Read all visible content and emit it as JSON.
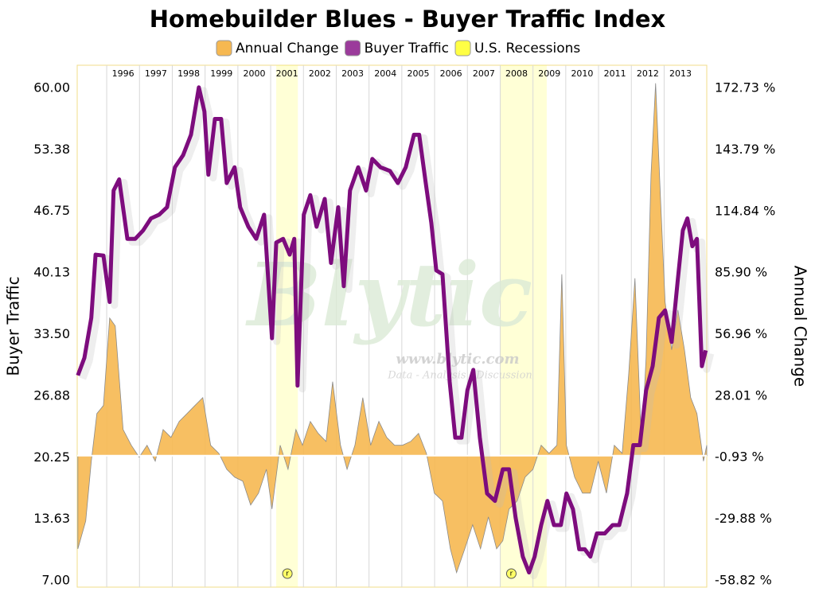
{
  "chart_data": {
    "type": "line",
    "title": "Homebuilder Blues - Buyer Traffic Index",
    "ylabel": "Buyer Traffic",
    "y2label": "Annual Change",
    "xlim": [
      1995.1,
      2014.3
    ],
    "xticks": [
      {
        "value": 1996,
        "label": "1996"
      },
      {
        "value": 1997,
        "label": "1997"
      },
      {
        "value": 1998,
        "label": "1998"
      },
      {
        "value": 1999,
        "label": "1999"
      },
      {
        "value": 2000,
        "label": "2000"
      },
      {
        "value": 2001,
        "label": "2001"
      },
      {
        "value": 2002,
        "label": "2002"
      },
      {
        "value": 2003,
        "label": "2003"
      },
      {
        "value": 2004,
        "label": "2004"
      },
      {
        "value": 2005,
        "label": "2005"
      },
      {
        "value": 2006,
        "label": "2006"
      },
      {
        "value": 2007,
        "label": "2007"
      },
      {
        "value": 2008,
        "label": "2008"
      },
      {
        "value": 2009,
        "label": "2009"
      },
      {
        "value": 2010,
        "label": "2010"
      },
      {
        "value": 2011,
        "label": "2011"
      },
      {
        "value": 2012,
        "label": "2012"
      },
      {
        "value": 2013,
        "label": "2013"
      }
    ],
    "ylim": [
      6.32,
      62.48
    ],
    "yticks": [
      {
        "value": 7,
        "label": "7.00"
      },
      {
        "value": 13.63,
        "label": "13.63"
      },
      {
        "value": 20.25,
        "label": "20.25"
      },
      {
        "value": 26.88,
        "label": "26.88"
      },
      {
        "value": 33.5,
        "label": "33.50"
      },
      {
        "value": 40.13,
        "label": "40.13"
      },
      {
        "value": 46.75,
        "label": "46.75"
      },
      {
        "value": 53.38,
        "label": "53.38"
      },
      {
        "value": 60,
        "label": "60.00"
      }
    ],
    "y2lim": [
      -61.81,
      183.58
    ],
    "y2ticks": [
      {
        "value": -58.82,
        "label": "-58.82 %"
      },
      {
        "value": -29.88,
        "label": "-29.88 %"
      },
      {
        "value": -0.93,
        "label": "-0.93 %"
      },
      {
        "value": 28.01,
        "label": "28.01 %"
      },
      {
        "value": 56.96,
        "label": "56.96 %"
      },
      {
        "value": 85.9,
        "label": "85.90 %"
      },
      {
        "value": 114.84,
        "label": "114.84 %"
      },
      {
        "value": 143.79,
        "label": "143.79 %"
      },
      {
        "value": 172.73,
        "label": "172.73 %"
      }
    ],
    "series": [
      {
        "name": "Annual Change",
        "type": "area",
        "axis": "y2",
        "color": "#f6b851",
        "x": [
          1995.12,
          1995.36,
          1995.53,
          1995.7,
          1995.9,
          1996.09,
          1996.26,
          1996.5,
          1996.75,
          1996.99,
          1997.23,
          1997.48,
          1997.72,
          1997.96,
          1998.21,
          1998.45,
          1998.69,
          1998.93,
          1999.17,
          1999.42,
          1999.66,
          1999.9,
          2000.15,
          2000.39,
          2000.63,
          2000.87,
          2001.04,
          2001.29,
          2001.53,
          2001.77,
          2001.97,
          2002.21,
          2002.45,
          2002.69,
          2002.89,
          2003.13,
          2003.33,
          2003.57,
          2003.81,
          2004.05,
          2004.3,
          2004.54,
          2004.78,
          2005.02,
          2005.27,
          2005.51,
          2005.75,
          2005.99,
          2006.24,
          2006.48,
          2006.67,
          2006.92,
          2007.16,
          2007.4,
          2007.64,
          2007.89,
          2008.08,
          2008.27,
          2008.52,
          2008.76,
          2009.0,
          2009.25,
          2009.49,
          2009.73,
          2009.88,
          2010.02,
          2010.27,
          2010.51,
          2010.75,
          2010.99,
          2011.24,
          2011.48,
          2011.72,
          2011.92,
          2012.11,
          2012.31,
          2012.45,
          2012.6,
          2012.74,
          2012.89,
          2013.03,
          2013.23,
          2013.42,
          2013.62,
          2013.81,
          2014.0,
          2014.2,
          2014.3
        ],
        "values": [
          -43.8,
          -30.7,
          -2.6,
          19.8,
          23.6,
          64.7,
          61,
          12.3,
          4.9,
          -0.7,
          4.9,
          -2.6,
          12.3,
          8.6,
          16.1,
          19.8,
          23.6,
          27.3,
          4.9,
          1.1,
          -6.4,
          -10.1,
          -12,
          -23.2,
          -17.6,
          -6.4,
          -25.1,
          4.9,
          -6.4,
          12.3,
          4.9,
          16.1,
          10.5,
          6.7,
          34.8,
          4.9,
          -6.4,
          4.9,
          27.3,
          4.9,
          16.1,
          8.6,
          4.9,
          4.9,
          6.7,
          10.5,
          1.1,
          -17.6,
          -21.3,
          -43.8,
          -55,
          -43.8,
          -32.5,
          -43.8,
          -28.8,
          -43.8,
          -40,
          -25.1,
          -21.3,
          -10.1,
          -6.4,
          4.9,
          1.1,
          4.9,
          85.3,
          4.9,
          -10.1,
          -17.6,
          -17.6,
          -2.6,
          -17.6,
          4.9,
          1.1,
          38.5,
          83.4,
          4.9,
          46,
          132.1,
          175.1,
          120.8,
          72.2,
          49.8,
          68.5,
          49.8,
          27.3,
          19.8,
          -2.6,
          4.9
        ]
      },
      {
        "name": "Buyer Traffic",
        "type": "line",
        "color": "#7d0c7d",
        "x": [
          1995.12,
          1995.32,
          1995.53,
          1995.66,
          1995.9,
          1996.09,
          1996.21,
          1996.38,
          1996.63,
          1996.87,
          1997.11,
          1997.35,
          1997.6,
          1997.84,
          1998.08,
          1998.33,
          1998.57,
          1998.81,
          1998.98,
          1999.1,
          1999.3,
          1999.49,
          1999.66,
          1999.9,
          2000.07,
          2000.32,
          2000.56,
          2000.8,
          2001.04,
          2001.17,
          2001.38,
          2001.58,
          2001.72,
          2001.82,
          2002.01,
          2002.21,
          2002.4,
          2002.65,
          2002.84,
          2003.06,
          2003.23,
          2003.42,
          2003.67,
          2003.91,
          2004.1,
          2004.35,
          2004.64,
          2004.88,
          2005.12,
          2005.37,
          2005.53,
          2005.73,
          2005.9,
          2006.05,
          2006.24,
          2006.46,
          2006.63,
          2006.82,
          2007.0,
          2007.18,
          2007.38,
          2007.6,
          2007.84,
          2008.08,
          2008.27,
          2008.47,
          2008.69,
          2008.88,
          2009.05,
          2009.25,
          2009.44,
          2009.64,
          2009.85,
          2010.02,
          2010.22,
          2010.41,
          2010.58,
          2010.75,
          2010.95,
          2011.19,
          2011.43,
          2011.63,
          2011.87,
          2012.06,
          2012.26,
          2012.45,
          2012.65,
          2012.84,
          2013.03,
          2013.23,
          2013.42,
          2013.57,
          2013.71,
          2013.86,
          2014.0,
          2014.15,
          2014.27
        ],
        "values": [
          29.1,
          31,
          35.3,
          42.1,
          42,
          37,
          49,
          50.2,
          43.8,
          43.8,
          44.7,
          46,
          46.4,
          47.2,
          51.5,
          52.8,
          55,
          60.1,
          57.5,
          50.7,
          56.7,
          56.7,
          49.8,
          51.5,
          47.2,
          45.1,
          43.8,
          46.4,
          33.1,
          43.4,
          43.8,
          42.1,
          43.8,
          28,
          46.4,
          48.5,
          45.1,
          48.1,
          41.2,
          47.2,
          38.7,
          49,
          51.5,
          49,
          52.4,
          51.5,
          51.1,
          49.8,
          51.5,
          55,
          55,
          49.8,
          45.5,
          40.4,
          40,
          28.4,
          22.4,
          22.4,
          27.5,
          29.7,
          22.4,
          16.4,
          15.6,
          19,
          19,
          13.8,
          9.6,
          7.9,
          9.6,
          13,
          15.6,
          13,
          13,
          16.4,
          14.7,
          10.4,
          10.4,
          9.6,
          12.1,
          12.1,
          13,
          13,
          16.4,
          21.6,
          21.6,
          27.5,
          30.1,
          35.3,
          36.1,
          32.7,
          39.5,
          44.7,
          46,
          43,
          43.8,
          30.1,
          31.8
        ]
      }
    ],
    "recessions": {
      "name": "U.S. Recessions",
      "color": "#ffff44",
      "marker": "r",
      "ranges": [
        [
          2001.17,
          2001.83
        ],
        [
          2008.0,
          2009.42
        ]
      ]
    },
    "annotations": [
      "Blytic",
      "www.blytic.com",
      "Data - Analysis - Discussion"
    ]
  }
}
